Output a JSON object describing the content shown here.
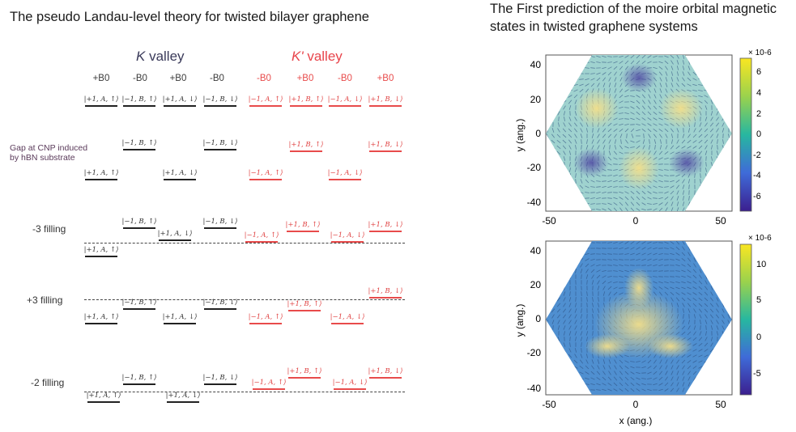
{
  "left": {
    "title": "The pseudo Landau-level theory for twisted bilayer graphene",
    "k_valley_italic": "K",
    "k_valley_suffix": " valley",
    "kp_valley_italic": "K'",
    "kp_valley_suffix": " valley",
    "fields": [
      "+B0",
      "-B0",
      "+B0",
      "-B0",
      "-B0",
      "+B0",
      "-B0",
      "+B0"
    ],
    "gap_label_line1": "Gap at CNP induced",
    "gap_label_line2": "by hBN substrate",
    "filling_labels": [
      "-3 filling",
      "+3 filling",
      "-2 filling"
    ],
    "level_labels": {
      "pA_up": "|+1, A, ↑⟩",
      "mB_up": "|−1, B, ↑⟩",
      "pA_dn": "|+1, A, ↓⟩",
      "mB_dn": "|−1, B, ↓⟩",
      "mA_up": "|−1, A, ↑⟩",
      "pB_up": "|+1, B, ↑⟩",
      "mA_dn": "|−1, A, ↓⟩",
      "pB_dn": "|+1, B, ↓⟩"
    }
  },
  "right": {
    "title": "The First prediction of the moire orbital magnetic states in twisted graphene systems",
    "plot1": {
      "ylabel": "y (ang.)",
      "yticks": [
        "40",
        "20",
        "0",
        "-20",
        "-40"
      ],
      "xticks": [
        "-50",
        "0",
        "50"
      ],
      "colorbar_ticks": [
        "6",
        "4",
        "2",
        "0",
        "-2",
        "-4",
        "-6"
      ],
      "colorbar_exponent": "× 10-6"
    },
    "plot2": {
      "ylabel": "y (ang.)",
      "xlabel": "x (ang.)",
      "yticks": [
        "40",
        "20",
        "0",
        "-20",
        "-40"
      ],
      "xticks": [
        "-50",
        "0",
        "50"
      ],
      "colorbar_ticks": [
        "10",
        "5",
        "0",
        "-5"
      ],
      "colorbar_exponent": "× 10-6"
    },
    "colors": {
      "viridis_high": "#f9e622",
      "viridis_mid": "#27b7a0",
      "viridis_low": "#3b1f8f"
    }
  }
}
